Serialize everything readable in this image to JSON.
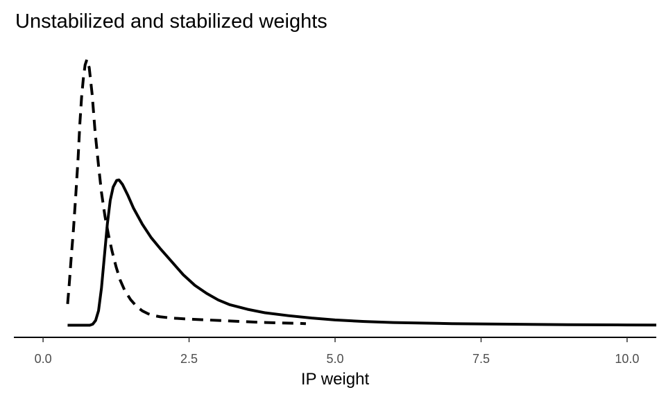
{
  "chart_data": {
    "type": "line",
    "title": "Unstabilized and stabilized weights",
    "xlabel": "IP weight",
    "ylabel": "",
    "xlim": [
      -0.5,
      10.5
    ],
    "ylim": [
      0,
      1.05
    ],
    "x_ticks": [
      0.0,
      2.5,
      5.0,
      7.5,
      10.0
    ],
    "x_tick_labels": [
      "0.0",
      "2.5",
      "5.0",
      "7.5",
      "10.0"
    ],
    "y_axis_visible": false,
    "grid": false,
    "legend": "none",
    "line_color": "#000000",
    "series": [
      {
        "line_style": "dashed",
        "points": [
          [
            0.42,
            0.08
          ],
          [
            0.45,
            0.16
          ],
          [
            0.48,
            0.25
          ],
          [
            0.52,
            0.36
          ],
          [
            0.56,
            0.49
          ],
          [
            0.6,
            0.63
          ],
          [
            0.63,
            0.76
          ],
          [
            0.66,
            0.86
          ],
          [
            0.69,
            0.93
          ],
          [
            0.72,
            0.98
          ],
          [
            0.75,
            1.0
          ],
          [
            0.79,
            0.97
          ],
          [
            0.84,
            0.87
          ],
          [
            0.89,
            0.73
          ],
          [
            0.95,
            0.6
          ],
          [
            1.0,
            0.5
          ],
          [
            1.06,
            0.41
          ],
          [
            1.12,
            0.34
          ],
          [
            1.18,
            0.28
          ],
          [
            1.25,
            0.22
          ],
          [
            1.32,
            0.17
          ],
          [
            1.4,
            0.13
          ],
          [
            1.5,
            0.096
          ],
          [
            1.6,
            0.071
          ],
          [
            1.7,
            0.054
          ],
          [
            1.8,
            0.043
          ],
          [
            1.9,
            0.036
          ],
          [
            2.0,
            0.032
          ],
          [
            2.2,
            0.027
          ],
          [
            2.5,
            0.023
          ],
          [
            2.8,
            0.02
          ],
          [
            3.2,
            0.016
          ],
          [
            3.6,
            0.012
          ],
          [
            4.0,
            0.009
          ],
          [
            4.4,
            0.007
          ],
          [
            4.5,
            0.006
          ]
        ]
      },
      {
        "line_style": "solid",
        "points": [
          [
            0.42,
            0.0
          ],
          [
            0.8,
            0.0
          ],
          [
            0.85,
            0.004
          ],
          [
            0.9,
            0.018
          ],
          [
            0.95,
            0.055
          ],
          [
            1.0,
            0.14
          ],
          [
            1.05,
            0.26
          ],
          [
            1.1,
            0.38
          ],
          [
            1.15,
            0.47
          ],
          [
            1.2,
            0.52
          ],
          [
            1.26,
            0.545
          ],
          [
            1.3,
            0.547
          ],
          [
            1.36,
            0.53
          ],
          [
            1.45,
            0.49
          ],
          [
            1.55,
            0.44
          ],
          [
            1.7,
            0.38
          ],
          [
            1.85,
            0.33
          ],
          [
            2.0,
            0.29
          ],
          [
            2.2,
            0.24
          ],
          [
            2.4,
            0.19
          ],
          [
            2.6,
            0.15
          ],
          [
            2.8,
            0.12
          ],
          [
            3.0,
            0.095
          ],
          [
            3.2,
            0.077
          ],
          [
            3.5,
            0.06
          ],
          [
            3.8,
            0.047
          ],
          [
            4.2,
            0.036
          ],
          [
            4.6,
            0.027
          ],
          [
            5.0,
            0.02
          ],
          [
            5.5,
            0.014
          ],
          [
            6.0,
            0.01
          ],
          [
            7.0,
            0.006
          ],
          [
            8.0,
            0.004
          ],
          [
            9.0,
            0.002
          ],
          [
            10.0,
            0.001
          ],
          [
            10.5,
            0.0005
          ]
        ]
      }
    ]
  }
}
